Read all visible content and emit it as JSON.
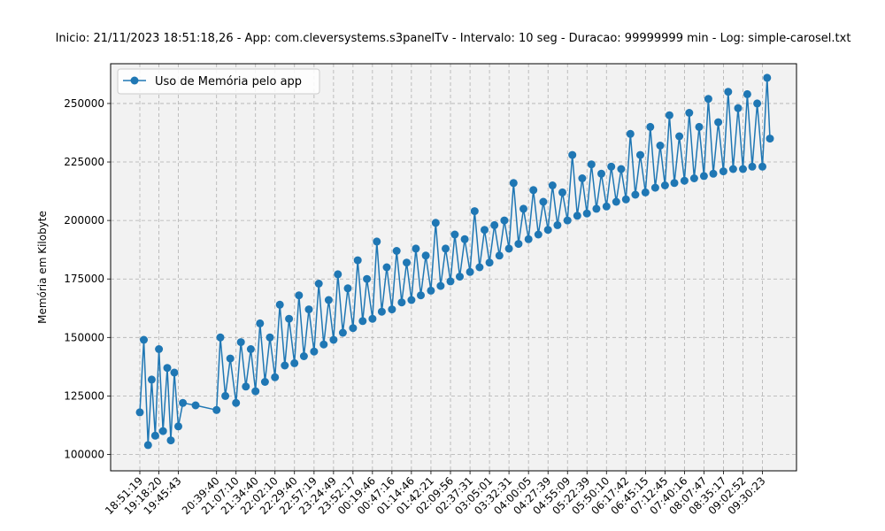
{
  "chart_data": {
    "type": "line",
    "title": "Inicio: 21/11/2023 18:51:18,26 - App: com.cleversystems.s3panelTv - Intervalo: 10 seg - Duracao: 99999999 min - Log: simple-carosel.txt",
    "xlabel": "",
    "ylabel": "Memória em Kilobyte",
    "ylim": [
      93000,
      267000
    ],
    "grid": true,
    "legend_position": "upper-left",
    "x_tick_labels": [
      "18:51:19",
      "19:18:20",
      "19:45:43",
      "20:39:40",
      "21:07:10",
      "21:34:40",
      "22:02:10",
      "22:29:40",
      "22:57:19",
      "23:24:49",
      "23:52:17",
      "00:19:46",
      "00:47:16",
      "01:14:46",
      "01:42:21",
      "02:09:56",
      "02:37:31",
      "03:05:01",
      "03:32:31",
      "04:00:05",
      "04:27:39",
      "04:55:09",
      "05:22:39",
      "05:50:10",
      "06:17:42",
      "06:45:15",
      "07:12:45",
      "07:40:16",
      "08:07:47",
      "08:35:17",
      "09:02:52",
      "09:30:23"
    ],
    "y_ticks": [
      100000,
      125000,
      150000,
      175000,
      200000,
      225000,
      250000
    ],
    "y_tick_labels": [
      "100000",
      "125000",
      "150000",
      "175000",
      "200000",
      "225000",
      "250000"
    ],
    "series": [
      {
        "name": "Uso de Memória pelo app",
        "color": "#1f77b4",
        "marker": "circle",
        "points": [
          [
            "18:51:19",
            118000
          ],
          [
            "18:57:00",
            149000
          ],
          [
            "19:03:00",
            104000
          ],
          [
            "19:08:00",
            132000
          ],
          [
            "19:13:00",
            108000
          ],
          [
            "19:18:20",
            145000
          ],
          [
            "19:24:00",
            110000
          ],
          [
            "19:30:00",
            137000
          ],
          [
            "19:35:00",
            106000
          ],
          [
            "19:40:00",
            135000
          ],
          [
            "19:45:43",
            112000
          ],
          [
            "19:52:00",
            122000
          ],
          [
            "20:10:00",
            121000
          ],
          [
            "20:39:40",
            119000
          ],
          [
            "20:45:00",
            150000
          ],
          [
            "20:52:00",
            125000
          ],
          [
            "20:59:00",
            141000
          ],
          [
            "21:07:10",
            122000
          ],
          [
            "21:14:00",
            148000
          ],
          [
            "21:21:00",
            129000
          ],
          [
            "21:28:00",
            145000
          ],
          [
            "21:34:40",
            127000
          ],
          [
            "21:41:00",
            156000
          ],
          [
            "21:48:00",
            131000
          ],
          [
            "21:55:00",
            150000
          ],
          [
            "22:02:10",
            133000
          ],
          [
            "22:09:00",
            164000
          ],
          [
            "22:16:00",
            138000
          ],
          [
            "22:22:00",
            158000
          ],
          [
            "22:29:40",
            139000
          ],
          [
            "22:36:00",
            168000
          ],
          [
            "22:43:00",
            142000
          ],
          [
            "22:50:00",
            162000
          ],
          [
            "22:57:19",
            144000
          ],
          [
            "23:04:00",
            173000
          ],
          [
            "23:11:00",
            147000
          ],
          [
            "23:18:00",
            166000
          ],
          [
            "23:24:49",
            149000
          ],
          [
            "23:31:00",
            177000
          ],
          [
            "23:38:00",
            152000
          ],
          [
            "23:45:00",
            171000
          ],
          [
            "23:52:17",
            154000
          ],
          [
            "23:59:00",
            183000
          ],
          [
            "00:06:00",
            157000
          ],
          [
            "00:12:00",
            175000
          ],
          [
            "00:19:46",
            158000
          ],
          [
            "00:26:00",
            191000
          ],
          [
            "00:33:00",
            161000
          ],
          [
            "00:40:00",
            180000
          ],
          [
            "00:47:16",
            162000
          ],
          [
            "00:54:00",
            187000
          ],
          [
            "01:01:00",
            165000
          ],
          [
            "01:08:00",
            182000
          ],
          [
            "01:14:46",
            166000
          ],
          [
            "01:21:00",
            188000
          ],
          [
            "01:28:00",
            168000
          ],
          [
            "01:35:00",
            185000
          ],
          [
            "01:42:21",
            170000
          ],
          [
            "01:49:00",
            199000
          ],
          [
            "01:56:00",
            172000
          ],
          [
            "02:03:00",
            188000
          ],
          [
            "02:09:56",
            174000
          ],
          [
            "02:16:00",
            194000
          ],
          [
            "02:23:00",
            176000
          ],
          [
            "02:30:00",
            192000
          ],
          [
            "02:37:31",
            178000
          ],
          [
            "02:44:00",
            204000
          ],
          [
            "02:51:00",
            180000
          ],
          [
            "02:58:00",
            196000
          ],
          [
            "03:05:01",
            182000
          ],
          [
            "03:12:00",
            198000
          ],
          [
            "03:19:00",
            185000
          ],
          [
            "03:26:00",
            200000
          ],
          [
            "03:32:31",
            188000
          ],
          [
            "03:39:00",
            216000
          ],
          [
            "03:46:00",
            190000
          ],
          [
            "03:53:00",
            205000
          ],
          [
            "04:00:05",
            192000
          ],
          [
            "04:07:00",
            213000
          ],
          [
            "04:14:00",
            194000
          ],
          [
            "04:21:00",
            208000
          ],
          [
            "04:27:39",
            196000
          ],
          [
            "04:34:00",
            215000
          ],
          [
            "04:41:00",
            198000
          ],
          [
            "04:48:00",
            212000
          ],
          [
            "04:55:09",
            200000
          ],
          [
            "05:02:00",
            228000
          ],
          [
            "05:09:00",
            202000
          ],
          [
            "05:16:00",
            218000
          ],
          [
            "05:22:39",
            203000
          ],
          [
            "05:29:00",
            224000
          ],
          [
            "05:36:00",
            205000
          ],
          [
            "05:43:00",
            220000
          ],
          [
            "05:50:10",
            206000
          ],
          [
            "05:57:00",
            223000
          ],
          [
            "06:04:00",
            208000
          ],
          [
            "06:11:00",
            222000
          ],
          [
            "06:17:42",
            209000
          ],
          [
            "06:24:00",
            237000
          ],
          [
            "06:31:00",
            211000
          ],
          [
            "06:38:00",
            228000
          ],
          [
            "06:45:15",
            212000
          ],
          [
            "06:52:00",
            240000
          ],
          [
            "06:59:00",
            214000
          ],
          [
            "07:06:00",
            232000
          ],
          [
            "07:12:45",
            215000
          ],
          [
            "07:19:00",
            245000
          ],
          [
            "07:26:00",
            216000
          ],
          [
            "07:33:00",
            236000
          ],
          [
            "07:40:16",
            217000
          ],
          [
            "07:47:00",
            246000
          ],
          [
            "07:54:00",
            218000
          ],
          [
            "08:01:00",
            240000
          ],
          [
            "08:07:47",
            219000
          ],
          [
            "08:14:00",
            252000
          ],
          [
            "08:21:00",
            220000
          ],
          [
            "08:28:00",
            242000
          ],
          [
            "08:35:17",
            221000
          ],
          [
            "08:42:00",
            255000
          ],
          [
            "08:49:00",
            222000
          ],
          [
            "08:56:00",
            248000
          ],
          [
            "09:02:52",
            222000
          ],
          [
            "09:09:00",
            254000
          ],
          [
            "09:16:00",
            223000
          ],
          [
            "09:23:00",
            250000
          ],
          [
            "09:30:23",
            223000
          ],
          [
            "09:37:00",
            261000
          ],
          [
            "09:41:00",
            235000
          ]
        ]
      }
    ]
  }
}
